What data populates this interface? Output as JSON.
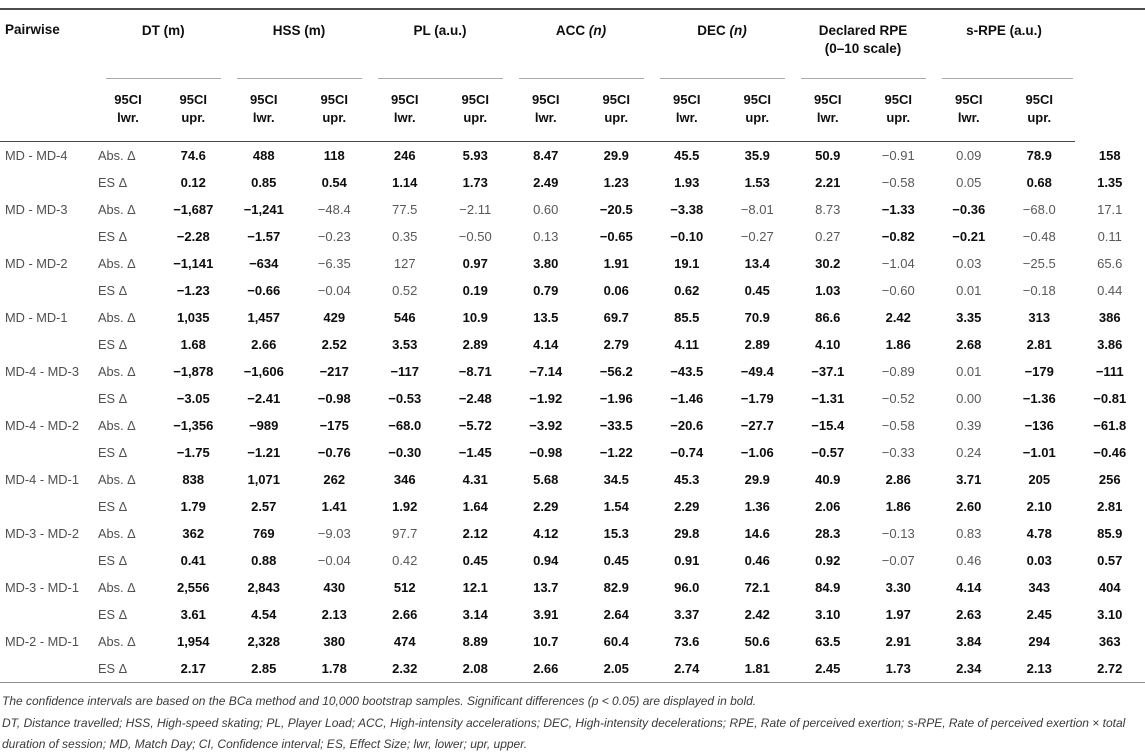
{
  "header": {
    "pairwise": "Pairwise",
    "ci": "95CI",
    "lwr": "lwr.",
    "upr": "upr.",
    "groups": [
      {
        "name": "DT",
        "unit": "(m)",
        "unit_italic": false,
        "stack": false
      },
      {
        "name": "HSS",
        "unit": "(m)",
        "unit_italic": false,
        "stack": false
      },
      {
        "name": "PL",
        "unit": "(a.u.)",
        "unit_italic": false,
        "stack": false
      },
      {
        "name": "ACC",
        "unit": "(n)",
        "unit_italic": true,
        "stack": false
      },
      {
        "name": "DEC",
        "unit": "(n)",
        "unit_italic": true,
        "stack": false
      },
      {
        "name": "Declared RPE",
        "unit": "(0–10 scale)",
        "unit_italic": false,
        "stack": true
      },
      {
        "name": "s-RPE",
        "unit": "(a.u.)",
        "unit_italic": false,
        "stack": false
      }
    ]
  },
  "row_labels": {
    "abs": "Abs. Δ",
    "es": "ES Δ"
  },
  "rows": [
    {
      "pair": "MD - MD-4",
      "abs": {
        "values": [
          "74.6",
          "488",
          "118",
          "246",
          "5.93",
          "8.47",
          "29.9",
          "45.5",
          "35.9",
          "50.9",
          "−0.91",
          "0.09",
          "78.9",
          "158"
        ],
        "bold": [
          1,
          1,
          1,
          1,
          1,
          1,
          1,
          1,
          1,
          1,
          0,
          0,
          1,
          1
        ]
      },
      "es": {
        "values": [
          "0.12",
          "0.85",
          "0.54",
          "1.14",
          "1.73",
          "2.49",
          "1.23",
          "1.93",
          "1.53",
          "2.21",
          "−0.58",
          "0.05",
          "0.68",
          "1.35"
        ],
        "bold": [
          1,
          1,
          1,
          1,
          1,
          1,
          1,
          1,
          1,
          1,
          0,
          0,
          1,
          1
        ]
      }
    },
    {
      "pair": "MD - MD-3",
      "abs": {
        "values": [
          "−1,687",
          "−1,241",
          "−48.4",
          "77.5",
          "−2.11",
          "0.60",
          "−20.5",
          "−3.38",
          "−8.01",
          "8.73",
          "−1.33",
          "−0.36",
          "−68.0",
          "17.1"
        ],
        "bold": [
          1,
          1,
          0,
          0,
          0,
          0,
          1,
          1,
          0,
          0,
          1,
          1,
          0,
          0
        ]
      },
      "es": {
        "values": [
          "−2.28",
          "−1.57",
          "−0.23",
          "0.35",
          "−0.50",
          "0.13",
          "−0.65",
          "−0.10",
          "−0.27",
          "0.27",
          "−0.82",
          "−0.21",
          "−0.48",
          "0.11"
        ],
        "bold": [
          1,
          1,
          0,
          0,
          0,
          0,
          1,
          1,
          0,
          0,
          1,
          1,
          0,
          0
        ]
      }
    },
    {
      "pair": "MD - MD-2",
      "abs": {
        "values": [
          "−1,141",
          "−634",
          "−6.35",
          "127",
          "0.97",
          "3.80",
          "1.91",
          "19.1",
          "13.4",
          "30.2",
          "−1.04",
          "0.03",
          "−25.5",
          "65.6"
        ],
        "bold": [
          1,
          1,
          0,
          0,
          1,
          1,
          1,
          1,
          1,
          1,
          0,
          0,
          0,
          0
        ]
      },
      "es": {
        "values": [
          "−1.23",
          "−0.66",
          "−0.04",
          "0.52",
          "0.19",
          "0.79",
          "0.06",
          "0.62",
          "0.45",
          "1.03",
          "−0.60",
          "0.01",
          "−0.18",
          "0.44"
        ],
        "bold": [
          1,
          1,
          0,
          0,
          1,
          1,
          1,
          1,
          1,
          1,
          0,
          0,
          0,
          0
        ]
      }
    },
    {
      "pair": "MD - MD-1",
      "abs": {
        "values": [
          "1,035",
          "1,457",
          "429",
          "546",
          "10.9",
          "13.5",
          "69.7",
          "85.5",
          "70.9",
          "86.6",
          "2.42",
          "3.35",
          "313",
          "386"
        ],
        "bold": [
          1,
          1,
          1,
          1,
          1,
          1,
          1,
          1,
          1,
          1,
          1,
          1,
          1,
          1
        ]
      },
      "es": {
        "values": [
          "1.68",
          "2.66",
          "2.52",
          "3.53",
          "2.89",
          "4.14",
          "2.79",
          "4.11",
          "2.89",
          "4.10",
          "1.86",
          "2.68",
          "2.81",
          "3.86"
        ],
        "bold": [
          1,
          1,
          1,
          1,
          1,
          1,
          1,
          1,
          1,
          1,
          1,
          1,
          1,
          1
        ]
      }
    },
    {
      "pair": "MD-4 - MD-3",
      "abs": {
        "values": [
          "−1,878",
          "−1,606",
          "−217",
          "−117",
          "−8.71",
          "−7.14",
          "−56.2",
          "−43.5",
          "−49.4",
          "−37.1",
          "−0.89",
          "0.01",
          "−179",
          "−111"
        ],
        "bold": [
          1,
          1,
          1,
          1,
          1,
          1,
          1,
          1,
          1,
          1,
          0,
          0,
          1,
          1
        ]
      },
      "es": {
        "values": [
          "−3.05",
          "−2.41",
          "−0.98",
          "−0.53",
          "−2.48",
          "−1.92",
          "−1.96",
          "−1.46",
          "−1.79",
          "−1.31",
          "−0.52",
          "0.00",
          "−1.36",
          "−0.81"
        ],
        "bold": [
          1,
          1,
          1,
          1,
          1,
          1,
          1,
          1,
          1,
          1,
          0,
          0,
          1,
          1
        ]
      }
    },
    {
      "pair": "MD-4 - MD-2",
      "abs": {
        "values": [
          "−1,356",
          "−989",
          "−175",
          "−68.0",
          "−5.72",
          "−3.92",
          "−33.5",
          "−20.6",
          "−27.7",
          "−15.4",
          "−0.58",
          "0.39",
          "−136",
          "−61.8"
        ],
        "bold": [
          1,
          1,
          1,
          1,
          1,
          1,
          1,
          1,
          1,
          1,
          0,
          0,
          1,
          1
        ]
      },
      "es": {
        "values": [
          "−1.75",
          "−1.21",
          "−0.76",
          "−0.30",
          "−1.45",
          "−0.98",
          "−1.22",
          "−0.74",
          "−1.06",
          "−0.57",
          "−0.33",
          "0.24",
          "−1.01",
          "−0.46"
        ],
        "bold": [
          1,
          1,
          1,
          1,
          1,
          1,
          1,
          1,
          1,
          1,
          0,
          0,
          1,
          1
        ]
      }
    },
    {
      "pair": "MD-4 - MD-1",
      "abs": {
        "values": [
          "838",
          "1,071",
          "262",
          "346",
          "4.31",
          "5.68",
          "34.5",
          "45.3",
          "29.9",
          "40.9",
          "2.86",
          "3.71",
          "205",
          "256"
        ],
        "bold": [
          1,
          1,
          1,
          1,
          1,
          1,
          1,
          1,
          1,
          1,
          1,
          1,
          1,
          1
        ]
      },
      "es": {
        "values": [
          "1.79",
          "2.57",
          "1.41",
          "1.92",
          "1.64",
          "2.29",
          "1.54",
          "2.29",
          "1.36",
          "2.06",
          "1.86",
          "2.60",
          "2.10",
          "2.81"
        ],
        "bold": [
          1,
          1,
          1,
          1,
          1,
          1,
          1,
          1,
          1,
          1,
          1,
          1,
          1,
          1
        ]
      }
    },
    {
      "pair": "MD-3 - MD-2",
      "abs": {
        "values": [
          "362",
          "769",
          "−9.03",
          "97.7",
          "2.12",
          "4.12",
          "15.3",
          "29.8",
          "14.6",
          "28.3",
          "−0.13",
          "0.83",
          "4.78",
          "85.9"
        ],
        "bold": [
          1,
          1,
          0,
          0,
          1,
          1,
          1,
          1,
          1,
          1,
          0,
          0,
          1,
          1
        ]
      },
      "es": {
        "values": [
          "0.41",
          "0.88",
          "−0.04",
          "0.42",
          "0.45",
          "0.94",
          "0.45",
          "0.91",
          "0.46",
          "0.92",
          "−0.07",
          "0.46",
          "0.03",
          "0.57"
        ],
        "bold": [
          1,
          1,
          0,
          0,
          1,
          1,
          1,
          1,
          1,
          1,
          0,
          0,
          1,
          1
        ]
      }
    },
    {
      "pair": "MD-3 - MD-1",
      "abs": {
        "values": [
          "2,556",
          "2,843",
          "430",
          "512",
          "12.1",
          "13.7",
          "82.9",
          "96.0",
          "72.1",
          "84.9",
          "3.30",
          "4.14",
          "343",
          "404"
        ],
        "bold": [
          1,
          1,
          1,
          1,
          1,
          1,
          1,
          1,
          1,
          1,
          1,
          1,
          1,
          1
        ]
      },
      "es": {
        "values": [
          "3.61",
          "4.54",
          "2.13",
          "2.66",
          "3.14",
          "3.91",
          "2.64",
          "3.37",
          "2.42",
          "3.10",
          "1.97",
          "2.63",
          "2.45",
          "3.10"
        ],
        "bold": [
          1,
          1,
          1,
          1,
          1,
          1,
          1,
          1,
          1,
          1,
          1,
          1,
          1,
          1
        ]
      }
    },
    {
      "pair": "MD-2 - MD-1",
      "abs": {
        "values": [
          "1,954",
          "2,328",
          "380",
          "474",
          "8.89",
          "10.7",
          "60.4",
          "73.6",
          "50.6",
          "63.5",
          "2.91",
          "3.84",
          "294",
          "363"
        ],
        "bold": [
          1,
          1,
          1,
          1,
          1,
          1,
          1,
          1,
          1,
          1,
          1,
          1,
          1,
          1
        ]
      },
      "es": {
        "values": [
          "2.17",
          "2.85",
          "1.78",
          "2.32",
          "2.08",
          "2.66",
          "2.05",
          "2.74",
          "1.81",
          "2.45",
          "1.73",
          "2.34",
          "2.13",
          "2.72"
        ],
        "bold": [
          1,
          1,
          1,
          1,
          1,
          1,
          1,
          1,
          1,
          1,
          1,
          1,
          1,
          1
        ]
      }
    }
  ],
  "footnotes": [
    "The confidence intervals are based on the BCa method and 10,000 bootstrap samples. Significant differences (p < 0.05) are displayed in bold.",
    "DT, Distance travelled; HSS, High-speed skating; PL, Player Load; ACC, High-intensity accelerations; DEC, High-intensity decelerations; RPE, Rate of perceived exertion; s-RPE, Rate of perceived exertion × total duration of session; MD, Match Day; CI, Confidence interval; ES, Effect Size; lwr, lower; upr, upper."
  ],
  "colors": {
    "bold_text": "#0d0d0d",
    "regular_text": "#585858",
    "rule_dark": "#4b4b4b",
    "rule_light": "#aaaaaa",
    "footnote_text": "#3a3a3a"
  }
}
